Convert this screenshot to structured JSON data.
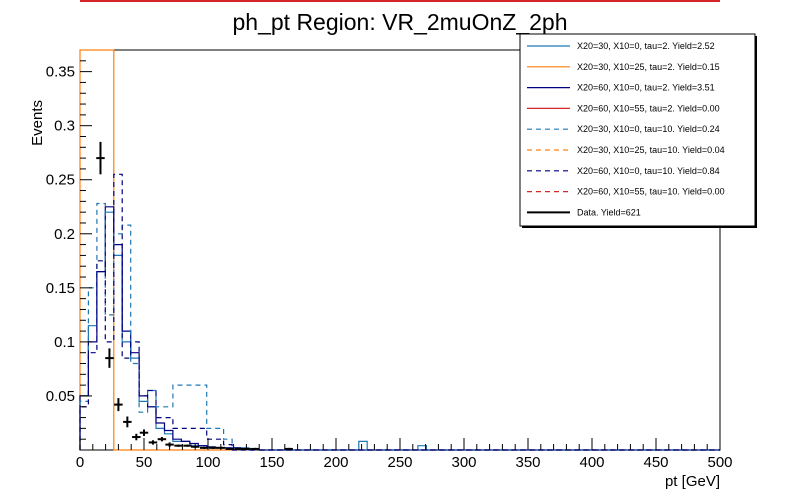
{
  "chart_data": {
    "type": "histogram",
    "title": "ph_pt Region: VR_2muOnZ_2ph",
    "xlabel": "pt [GeV]",
    "ylabel": "Events",
    "xlim": [
      0,
      500
    ],
    "ylim": [
      0,
      0.37
    ],
    "bin_width": 6.6,
    "x_ticks": [
      0,
      50,
      100,
      150,
      200,
      250,
      300,
      350,
      400,
      450,
      500
    ],
    "x_tick_labels": [
      "0",
      "50",
      "100",
      "150",
      "200",
      "250",
      "300",
      "350",
      "400",
      "450",
      "500"
    ],
    "y_ticks": [
      0.05,
      0.1,
      0.15,
      0.2,
      0.25,
      0.3,
      0.35
    ],
    "y_tick_labels": [
      "0.05",
      "0.1",
      "0.15",
      "0.2",
      "0.25",
      "0.3",
      "0.35"
    ],
    "legend_position": "top-right",
    "series": [
      {
        "name": "X20=30, X10=0, tau=2. Yield=2.52",
        "color": "#1f77b4",
        "style": "solid",
        "values": [
          0.05,
          0.115,
          0.165,
          0.22,
          0.18,
          0.1,
          0.085,
          0.045,
          0.04,
          0.02,
          0.015,
          0.008,
          0.008,
          0.004,
          0.004,
          0.002,
          0.002,
          0.002,
          0.002,
          0.002,
          0,
          0,
          0,
          0,
          0,
          0,
          0,
          0,
          0,
          0,
          0,
          0,
          0,
          0.008,
          0,
          0,
          0,
          0,
          0,
          0,
          0.004,
          0,
          0,
          0,
          0,
          0,
          0,
          0,
          0,
          0,
          0,
          0,
          0,
          0,
          0,
          0,
          0,
          0,
          0,
          0,
          0,
          0,
          0,
          0,
          0,
          0,
          0,
          0,
          0,
          0,
          0,
          0,
          0,
          0,
          0,
          0
        ]
      },
      {
        "name": "X20=30, X10=25, tau=2. Yield=0.15",
        "color": "#ff7f0e",
        "style": "solid",
        "values": [
          0.37,
          0.37,
          0.37,
          0.37,
          0,
          0,
          0,
          0,
          0,
          0,
          0,
          0,
          0,
          0,
          0,
          0,
          0,
          0,
          0,
          0,
          0,
          0,
          0,
          0,
          0,
          0,
          0,
          0,
          0,
          0,
          0,
          0,
          0,
          0,
          0,
          0,
          0,
          0,
          0,
          0,
          0,
          0,
          0,
          0,
          0,
          0,
          0,
          0,
          0,
          0,
          0,
          0,
          0,
          0,
          0,
          0,
          0,
          0,
          0,
          0,
          0,
          0,
          0,
          0,
          0,
          0,
          0,
          0,
          0,
          0,
          0,
          0,
          0,
          0,
          0,
          0
        ]
      },
      {
        "name": "X20=60, X10=0, tau=2. Yield=3.51",
        "color": "#000080",
        "style": "solid",
        "values": [
          0.05,
          0.1,
          0.165,
          0.225,
          0.19,
          0.11,
          0.09,
          0.05,
          0.04,
          0.025,
          0.018,
          0.01,
          0.008,
          0.006,
          0.004,
          0.003,
          0.002,
          0.002,
          0.002,
          0.001,
          0.001,
          0,
          0,
          0,
          0,
          0,
          0,
          0,
          0,
          0,
          0,
          0,
          0,
          0,
          0,
          0,
          0,
          0,
          0,
          0,
          0,
          0,
          0,
          0,
          0,
          0,
          0,
          0,
          0,
          0,
          0,
          0,
          0,
          0,
          0,
          0,
          0,
          0,
          0,
          0,
          0,
          0,
          0,
          0,
          0,
          0,
          0,
          0,
          0,
          0,
          0,
          0,
          0,
          0,
          0,
          0
        ]
      },
      {
        "name": "X20=60, X10=55, tau=2. Yield=0.00",
        "color": "#d62728",
        "style": "solid",
        "values": []
      },
      {
        "name": "X20=30, X10=0, tau=10. Yield=0.24",
        "color": "#1f77b4",
        "style": "dashed",
        "values": [
          0.045,
          0.15,
          0.228,
          0.125,
          0.2,
          0.208,
          0.08,
          0.035,
          0.055,
          0.04,
          0.04,
          0.06,
          0.06,
          0.06,
          0.06,
          0.02,
          0.02,
          0.01,
          0,
          0,
          0,
          0,
          0,
          0,
          0,
          0,
          0,
          0,
          0,
          0,
          0,
          0,
          0,
          0,
          0,
          0,
          0,
          0,
          0,
          0,
          0,
          0,
          0,
          0,
          0,
          0,
          0,
          0,
          0,
          0,
          0,
          0,
          0,
          0,
          0,
          0,
          0,
          0,
          0,
          0,
          0,
          0,
          0,
          0,
          0,
          0,
          0,
          0,
          0,
          0,
          0,
          0,
          0,
          0,
          0,
          0
        ]
      },
      {
        "name": "X20=30, X10=25, tau=10. Yield=0.04",
        "color": "#ff7f0e",
        "style": "dashed",
        "values": []
      },
      {
        "name": "X20=60, X10=0, tau=10. Yield=0.84",
        "color": "#000080",
        "style": "dashed",
        "values": [
          0.04,
          0.09,
          0.175,
          0.1,
          0.255,
          0.085,
          0.1,
          0.05,
          0.055,
          0.03,
          0.03,
          0.02,
          0.02,
          0.02,
          0.02,
          0.01,
          0.01,
          0.005,
          0,
          0,
          0,
          0,
          0,
          0,
          0,
          0,
          0,
          0,
          0,
          0,
          0,
          0,
          0,
          0,
          0,
          0,
          0,
          0,
          0,
          0,
          0,
          0,
          0,
          0,
          0,
          0,
          0,
          0,
          0,
          0,
          0,
          0,
          0,
          0,
          0,
          0,
          0,
          0,
          0,
          0,
          0,
          0,
          0,
          0,
          0,
          0,
          0,
          0,
          0,
          0,
          0,
          0,
          0,
          0,
          0,
          0
        ]
      },
      {
        "name": "X20=60, X10=55, tau=10. Yield=0.00",
        "color": "#d62728",
        "style": "dashed",
        "values": []
      }
    ],
    "data_series": {
      "name": "Data. Yield=621",
      "color": "#000000",
      "points": [
        {
          "x": 16,
          "y": 0.27,
          "err": 0.015
        },
        {
          "x": 23,
          "y": 0.085,
          "err": 0.009
        },
        {
          "x": 30,
          "y": 0.042,
          "err": 0.006
        },
        {
          "x": 37,
          "y": 0.026,
          "err": 0.005
        },
        {
          "x": 44,
          "y": 0.012,
          "err": 0.003
        },
        {
          "x": 50,
          "y": 0.016,
          "err": 0.003
        },
        {
          "x": 57,
          "y": 0.007,
          "err": 0.002
        },
        {
          "x": 64,
          "y": 0.01,
          "err": 0.002
        },
        {
          "x": 70,
          "y": 0.005,
          "err": 0.002
        },
        {
          "x": 77,
          "y": 0.004,
          "err": 0.001
        },
        {
          "x": 84,
          "y": 0.004,
          "err": 0.001
        },
        {
          "x": 90,
          "y": 0.003,
          "err": 0.001
        },
        {
          "x": 97,
          "y": 0.002,
          "err": 0.001
        },
        {
          "x": 104,
          "y": 0.002,
          "err": 0.001
        },
        {
          "x": 110,
          "y": 0.002,
          "err": 0.001
        },
        {
          "x": 117,
          "y": 0.001,
          "err": 0.001
        },
        {
          "x": 124,
          "y": 0.001,
          "err": 0.001
        },
        {
          "x": 130,
          "y": 0.001,
          "err": 0.001
        },
        {
          "x": 137,
          "y": 0.001,
          "err": 0.001
        },
        {
          "x": 163,
          "y": 0.001,
          "err": 0.001
        }
      ]
    }
  }
}
